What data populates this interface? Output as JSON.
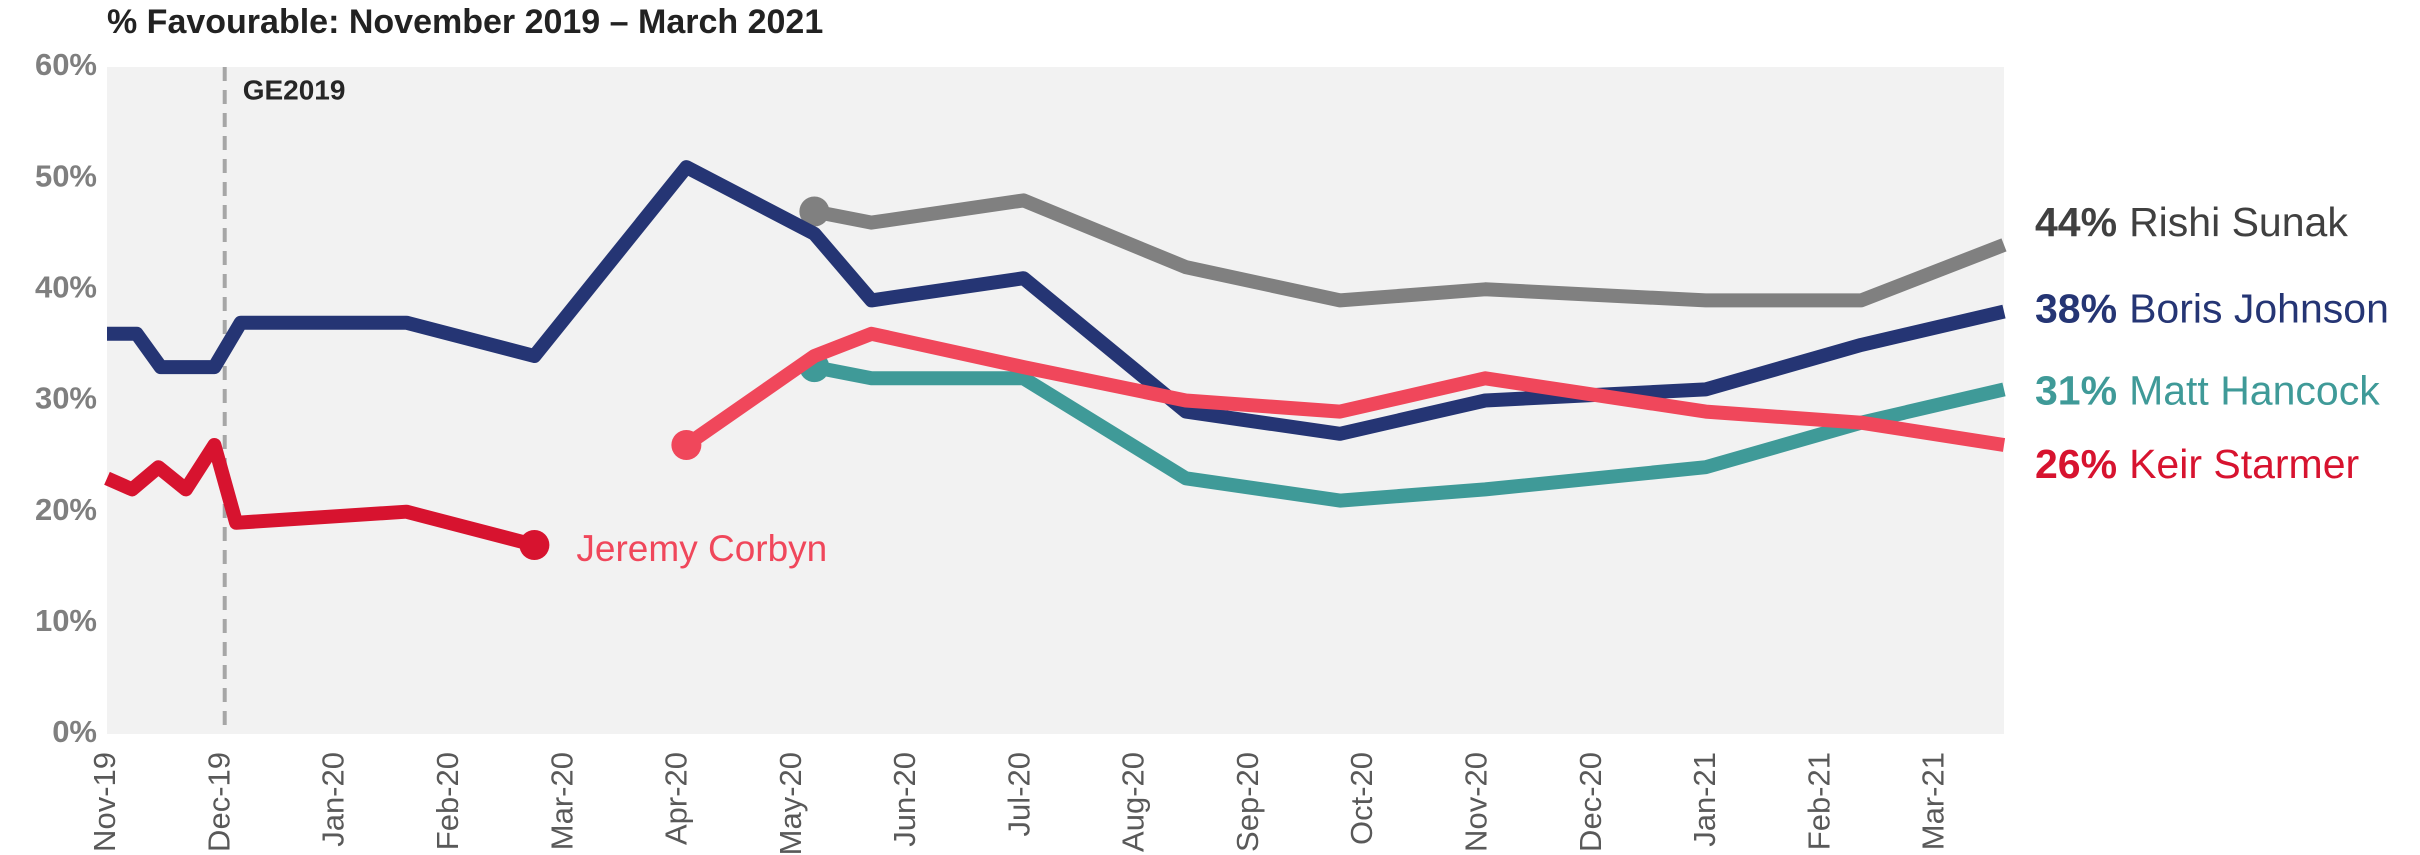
{
  "chart_data": {
    "type": "line",
    "title": "% Favourable: November 2019 – March 2021",
    "xlim": [
      0,
      16.6
    ],
    "xticks": [
      {
        "value": 0,
        "label": "Nov-19"
      },
      {
        "value": 1,
        "label": "Dec-19"
      },
      {
        "value": 2,
        "label": "Jan-20"
      },
      {
        "value": 3,
        "label": "Feb-20"
      },
      {
        "value": 4,
        "label": "Mar-20"
      },
      {
        "value": 5,
        "label": "Apr-20"
      },
      {
        "value": 6,
        "label": "May-20"
      },
      {
        "value": 7,
        "label": "Jun-20"
      },
      {
        "value": 8,
        "label": "Jul-20"
      },
      {
        "value": 9,
        "label": "Aug-20"
      },
      {
        "value": 10,
        "label": "Sep-20"
      },
      {
        "value": 11,
        "label": "Oct-20"
      },
      {
        "value": 12,
        "label": "Nov-20"
      },
      {
        "value": 13,
        "label": "Dec-20"
      },
      {
        "value": 14,
        "label": "Jan-21"
      },
      {
        "value": 15,
        "label": "Feb-21"
      },
      {
        "value": 16,
        "label": "Mar-21"
      }
    ],
    "ylim": [
      0,
      60
    ],
    "yticks": [
      {
        "value": 0,
        "label": "0%"
      },
      {
        "value": 10,
        "label": "10%"
      },
      {
        "value": 20,
        "label": "20%"
      },
      {
        "value": 30,
        "label": "30%"
      },
      {
        "value": 40,
        "label": "40%"
      },
      {
        "value": 50,
        "label": "50%"
      },
      {
        "value": 60,
        "label": "60%"
      }
    ],
    "plot_background": "#f2f2f2",
    "annotations": [
      {
        "x": 1.03,
        "label": "GE2019"
      }
    ],
    "series": [
      {
        "name": "Boris Johnson",
        "color": "#253574",
        "label_color": "#253574",
        "end_label": "38%",
        "x": [
          0,
          0.26,
          0.47,
          0.94,
          1.17,
          2.62,
          3.74,
          5.07,
          6.19,
          6.69,
          8.02,
          9.44,
          10.79,
          12.06,
          13.99,
          15.35,
          16.6
        ],
        "values": [
          36,
          36,
          33,
          33,
          37,
          37,
          34,
          51,
          45,
          39,
          41,
          29,
          27,
          30,
          31,
          35,
          38
        ]
      },
      {
        "name": "Jeremy Corbyn",
        "color": "#d7132f",
        "label_color": "#f0475b",
        "marker": "end",
        "x": [
          0,
          0.22,
          0.45,
          0.69,
          0.94,
          1.13,
          2.62,
          3.74
        ],
        "values": [
          23,
          22,
          24,
          22,
          26,
          19,
          20,
          17
        ]
      },
      {
        "name": "Keir Starmer",
        "color": "#f0475b",
        "label_color": "#d7132f",
        "end_label": "26%",
        "marker": "start",
        "x": [
          5.07,
          6.19,
          6.69,
          8.02,
          9.44,
          10.79,
          12.06,
          13.99,
          15.35,
          16.6
        ],
        "values": [
          26,
          34,
          36,
          33,
          30,
          29,
          32,
          29,
          28,
          26
        ]
      },
      {
        "name": "Rishi Sunak",
        "color": "#808080",
        "label_color": "#404040",
        "end_label": "44%",
        "marker": "start",
        "x": [
          6.19,
          6.69,
          8.02,
          9.44,
          10.79,
          12.06,
          13.99,
          15.35,
          16.6
        ],
        "values": [
          47,
          46,
          48,
          42,
          39,
          40,
          39,
          39,
          44
        ]
      },
      {
        "name": "Matt Hancock",
        "color": "#3f9a98",
        "label_color": "#3f9a98",
        "end_label": "31%",
        "marker": "start",
        "x": [
          6.19,
          6.69,
          8.02,
          9.44,
          10.79,
          12.06,
          13.99,
          15.35,
          16.6
        ],
        "values": [
          33,
          32,
          32,
          23,
          21,
          22,
          24,
          28,
          31
        ]
      }
    ]
  }
}
